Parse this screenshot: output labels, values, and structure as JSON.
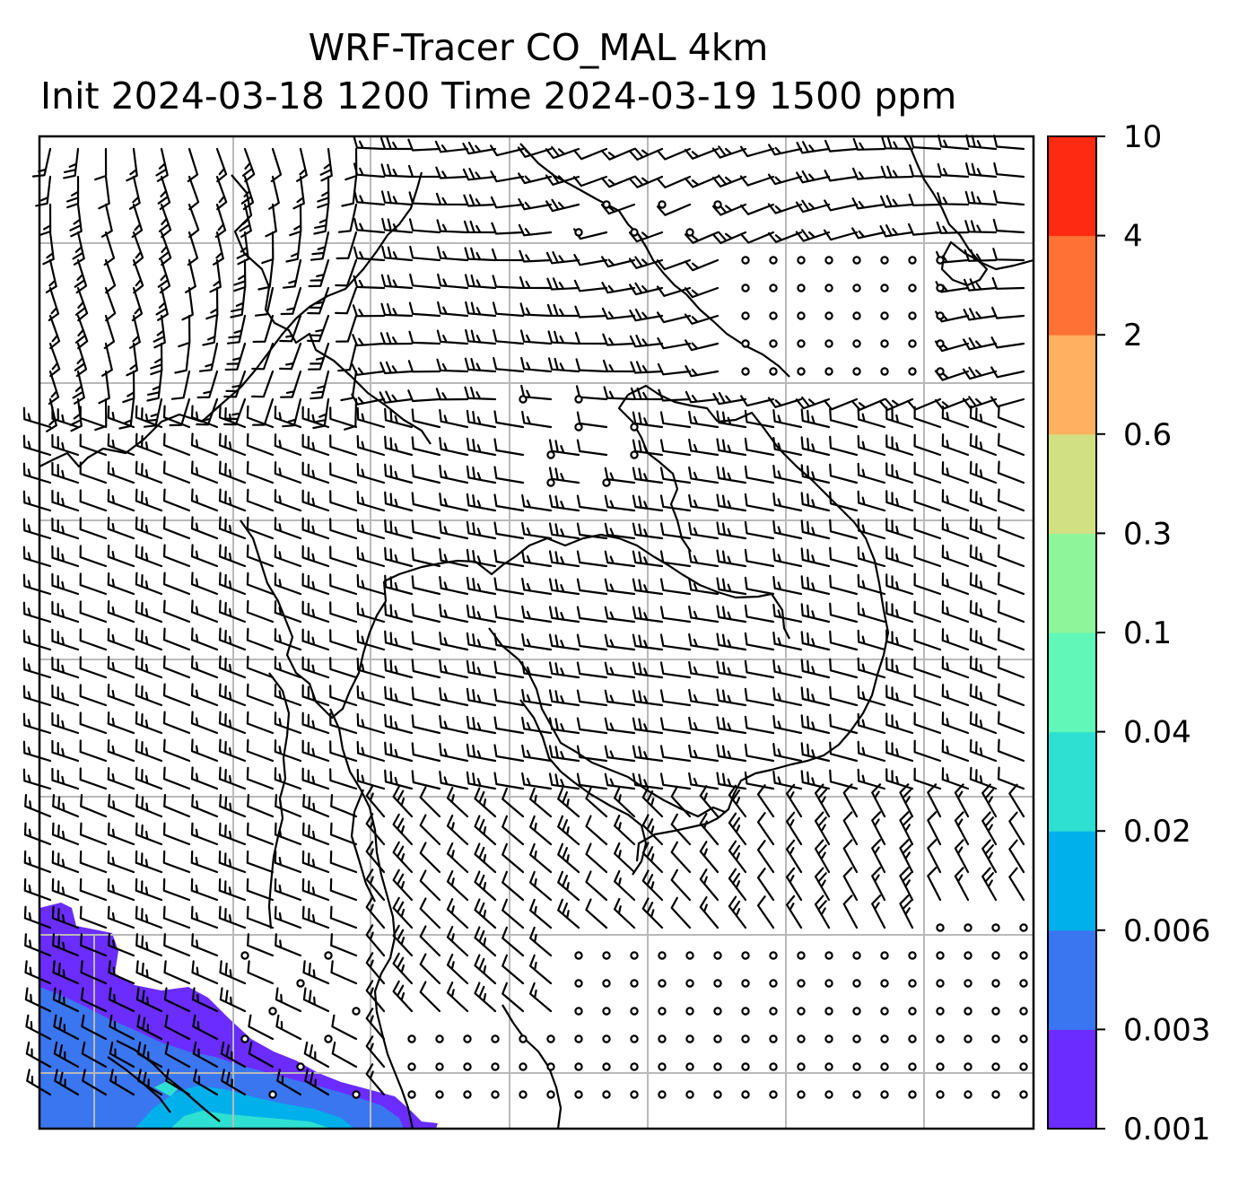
{
  "title": {
    "line1": "WRF-Tracer CO_MAL 4km",
    "line2": "Init 2024-03-18 1200 Time 2024-03-19 1500 ppm"
  },
  "colorbar": {
    "ticks": [
      "0.001",
      "0.003",
      "0.006",
      "0.02",
      "0.04",
      "0.1",
      "0.3",
      "0.6",
      "2",
      "4",
      "10"
    ],
    "colors": [
      "#6a2cff",
      "#3a76f0",
      "#00b0ea",
      "#2ee0d2",
      "#61f7b8",
      "#8ff59a",
      "#d1e083",
      "#ffb061",
      "#ff7135",
      "#ff2a12"
    ]
  },
  "map": {
    "gridlines": true,
    "features": [
      "coastlines",
      "country-borders",
      "wind-barbs",
      "tracer-concentration-fill"
    ],
    "plume_colors": [
      "#6a2cff",
      "#3a76f0",
      "#00b0ea",
      "#2ee0d2"
    ]
  }
}
